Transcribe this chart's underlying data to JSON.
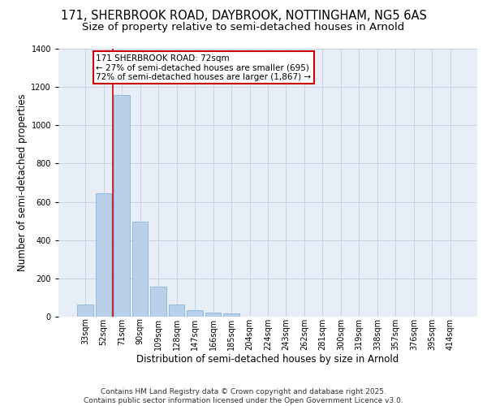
{
  "title_line1": "171, SHERBROOK ROAD, DAYBROOK, NOTTINGHAM, NG5 6AS",
  "title_line2": "Size of property relative to semi-detached houses in Arnold",
  "xlabel": "Distribution of semi-detached houses by size in Arnold",
  "ylabel": "Number of semi-detached properties",
  "categories": [
    "33sqm",
    "52sqm",
    "71sqm",
    "90sqm",
    "109sqm",
    "128sqm",
    "147sqm",
    "166sqm",
    "185sqm",
    "204sqm",
    "224sqm",
    "243sqm",
    "262sqm",
    "281sqm",
    "300sqm",
    "319sqm",
    "338sqm",
    "357sqm",
    "376sqm",
    "395sqm",
    "414sqm"
  ],
  "values": [
    65,
    645,
    1160,
    498,
    155,
    65,
    32,
    22,
    15,
    0,
    0,
    0,
    0,
    0,
    0,
    0,
    0,
    0,
    0,
    0,
    0
  ],
  "bar_color": "#b8d0ea",
  "bar_edge_color": "#7aaed4",
  "grid_color": "#c8d4e4",
  "background_color": "#e8eef8",
  "vline_color": "#cc0000",
  "vline_x_index": 2,
  "annotation_text": "171 SHERBROOK ROAD: 72sqm\n← 27% of semi-detached houses are smaller (695)\n72% of semi-detached houses are larger (1,867) →",
  "annotation_box_color": "#cc0000",
  "ylim": [
    0,
    1400
  ],
  "yticks": [
    0,
    200,
    400,
    600,
    800,
    1000,
    1200,
    1400
  ],
  "footer_line1": "Contains HM Land Registry data © Crown copyright and database right 2025.",
  "footer_line2": "Contains public sector information licensed under the Open Government Licence v3.0.",
  "title_fontsize": 10.5,
  "subtitle_fontsize": 9.5,
  "axis_label_fontsize": 8.5,
  "tick_fontsize": 7,
  "annotation_fontsize": 7.5,
  "footer_fontsize": 6.5
}
